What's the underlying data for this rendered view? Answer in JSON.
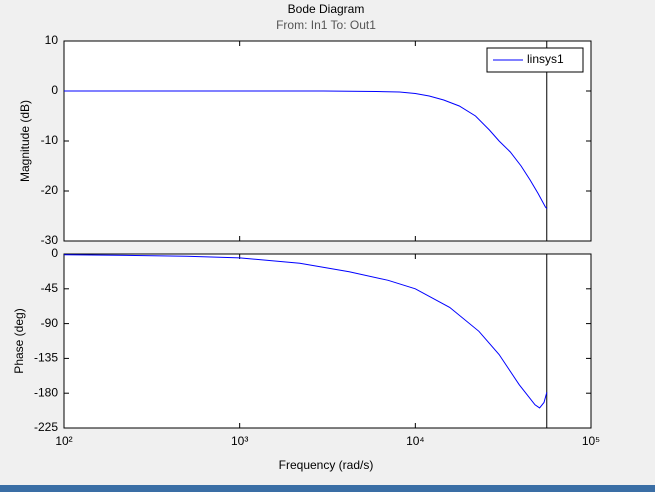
{
  "chart_data": [
    {
      "type": "line",
      "title": "Bode Diagram",
      "subtitle": "From: In1  To: Out1",
      "ylabel": "Magnitude (dB)",
      "log_x": true,
      "xlim": [
        100,
        100000
      ],
      "ylim": [
        -30,
        10
      ],
      "yticks": [
        -30,
        -20,
        -10,
        0,
        10
      ],
      "legend": "upper right",
      "vline_x": 56000,
      "series": [
        {
          "name": "linsys1",
          "color": "#0000ff",
          "x": [
            100,
            1000,
            3000,
            6000,
            8130,
            10000,
            12000,
            14500,
            17800,
            22000,
            26400,
            30000,
            34700,
            40000,
            45000,
            50000,
            55000,
            56000
          ],
          "values": [
            0,
            0,
            0,
            -0.1,
            -0.2,
            -0.5,
            -1,
            -1.8,
            -3,
            -5,
            -7.8,
            -10,
            -12.2,
            -15,
            -17.8,
            -20.5,
            -23.2,
            -23.5
          ]
        }
      ]
    },
    {
      "type": "line",
      "ylabel": "Phase (deg)",
      "xlabel": "Frequency  (rad/s)",
      "log_x": true,
      "xlim": [
        100,
        100000
      ],
      "ylim": [
        -225,
        0
      ],
      "yticks": [
        -225,
        -180,
        -135,
        -90,
        -45,
        0
      ],
      "xticks": [
        {
          "value": 100,
          "label": "10²"
        },
        {
          "value": 1000,
          "label": "10³"
        },
        {
          "value": 10000,
          "label": "10⁴"
        },
        {
          "value": 100000,
          "label": "10⁵"
        }
      ],
      "vline_x": 56000,
      "series": [
        {
          "color": "#0000ff",
          "x": [
            100,
            200,
            500,
            1000,
            2200,
            4200,
            7000,
            10000,
            15700,
            23000,
            30000,
            39000,
            48000,
            51000,
            54000,
            56000
          ],
          "values": [
            -1,
            -1.5,
            -3,
            -5,
            -12,
            -23,
            -34,
            -45,
            -69,
            -100,
            -130,
            -169,
            -195,
            -199,
            -192,
            -179
          ]
        }
      ]
    }
  ]
}
